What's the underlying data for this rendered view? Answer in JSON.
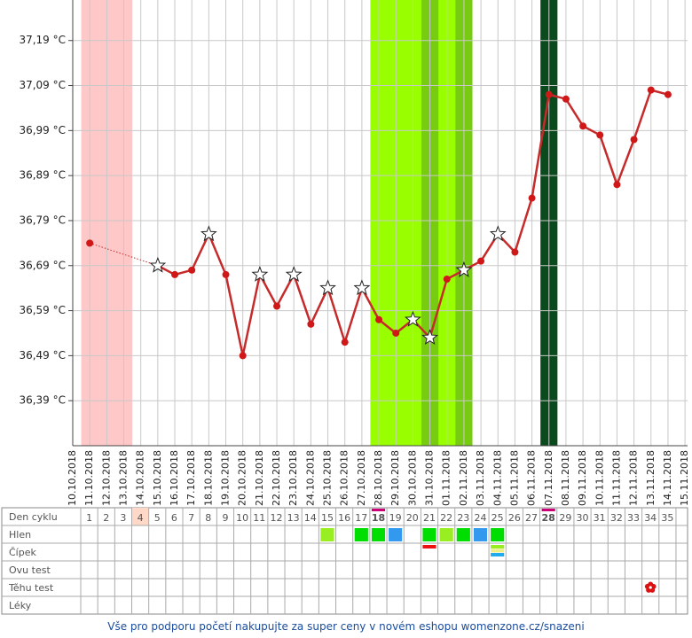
{
  "chart_data": {
    "type": "line",
    "categories": [
      "10.10.2018",
      "11.10.2018",
      "12.10.2018",
      "13.10.2018",
      "14.10.2018",
      "15.10.2018",
      "16.10.2018",
      "17.10.2018",
      "18.10.2018",
      "19.10.2018",
      "20.10.2018",
      "21.10.2018",
      "22.10.2018",
      "23.10.2018",
      "24.10.2018",
      "25.10.2018",
      "26.10.2018",
      "27.10.2018",
      "28.10.2018",
      "29.10.2018",
      "30.10.2018",
      "31.10.2018",
      "01.11.2018",
      "02.11.2018",
      "03.11.2018",
      "04.11.2018",
      "05.11.2018",
      "06.11.2018",
      "07.11.2018",
      "08.11.2018",
      "09.11.2018",
      "10.11.2018",
      "11.11.2018",
      "12.11.2018",
      "13.11.2018",
      "14.11.2018",
      "15.11.2018"
    ],
    "series": [
      {
        "color": "#c62a2a",
        "values": [
          null,
          36.74,
          null,
          null,
          null,
          36.69,
          36.67,
          36.68,
          36.76,
          36.67,
          36.49,
          36.67,
          36.6,
          36.67,
          36.56,
          36.64,
          36.52,
          36.64,
          36.57,
          36.54,
          36.57,
          36.53,
          36.66,
          36.68,
          36.7,
          36.76,
          36.72,
          36.84,
          37.07,
          37.06,
          37.0,
          36.98,
          36.87,
          36.97,
          37.08,
          37.07,
          null
        ],
        "markers": [
          null,
          "circle",
          null,
          null,
          null,
          "star",
          "circle",
          "circle",
          "star",
          "circle",
          "circle",
          "star",
          "circle",
          "star",
          "circle",
          "star",
          "circle",
          "star",
          "circle",
          "circle",
          "star",
          "star",
          "circle",
          "star",
          "circle",
          "star",
          "circle",
          "circle",
          "circle",
          "circle",
          "circle",
          "circle",
          "circle",
          "circle",
          "circle",
          "circle",
          null
        ]
      }
    ],
    "ylim": [
      36.29,
      37.28
    ],
    "yticks": [
      {
        "value": 36.39,
        "label": "36,39 °C"
      },
      {
        "value": 36.49,
        "label": "36,49 °C"
      },
      {
        "value": 36.59,
        "label": "36,59 °C"
      },
      {
        "value": 36.69,
        "label": "36,69 °C"
      },
      {
        "value": 36.79,
        "label": "36,79 °C"
      },
      {
        "value": 36.89,
        "label": "36,89 °C"
      },
      {
        "value": 36.99,
        "label": "36,99 °C"
      },
      {
        "value": 37.09,
        "label": "37,09 °C"
      },
      {
        "value": 37.19,
        "label": "37,19 °C"
      }
    ],
    "grid": true,
    "bands": [
      {
        "from": "11.10.2018",
        "to": "13.10.2018",
        "color": "#ffc8c8"
      },
      {
        "from": "28.10.2018",
        "to": "02.11.2018",
        "color": "#99ff00"
      },
      {
        "from": "31.10.2018",
        "to": "31.10.2018",
        "color": "#77cc11"
      },
      {
        "from": "02.11.2018",
        "to": "02.11.2018",
        "color": "#77cc11"
      },
      {
        "from": "07.11.2018",
        "to": "07.11.2018",
        "color": "#0b4a1c"
      }
    ]
  },
  "cycle_table": {
    "row_labels": [
      "Den cyklu",
      "Hlen",
      "Čípek",
      "Ovu test",
      "Těhu test",
      "Léky"
    ],
    "days": [
      1,
      2,
      3,
      4,
      5,
      6,
      7,
      8,
      9,
      10,
      11,
      12,
      13,
      14,
      15,
      16,
      17,
      18,
      19,
      20,
      21,
      22,
      23,
      24,
      25,
      26,
      27,
      28,
      29,
      30,
      31,
      32,
      33,
      34,
      35
    ],
    "day_styles": [
      null,
      null,
      null,
      "pink",
      null,
      null,
      null,
      null,
      null,
      null,
      null,
      null,
      null,
      null,
      null,
      null,
      null,
      "bold",
      null,
      null,
      null,
      null,
      null,
      null,
      null,
      null,
      null,
      "bold",
      null,
      null,
      null,
      null,
      null,
      null,
      null
    ],
    "hlen": [
      null,
      null,
      null,
      null,
      null,
      null,
      null,
      null,
      null,
      null,
      null,
      null,
      null,
      null,
      "#99ee22",
      null,
      "#00dd00",
      "#00dd00",
      "#3399ee",
      null,
      "#00dd00",
      "#99ee22",
      "#00dd00",
      "#3399ee",
      "#00dd00",
      null,
      null,
      null,
      null,
      null,
      null,
      null,
      null,
      null,
      null
    ],
    "cipek": [
      null,
      null,
      null,
      null,
      null,
      null,
      null,
      null,
      null,
      null,
      null,
      null,
      null,
      null,
      null,
      null,
      null,
      null,
      null,
      null,
      [
        "#ee1111"
      ],
      null,
      null,
      null,
      [
        "#99ee22",
        "#eeee88",
        "#22aaee"
      ],
      null,
      null,
      null,
      null,
      null,
      null,
      null,
      null,
      null,
      null
    ],
    "tehu_test": [
      null,
      null,
      null,
      null,
      null,
      null,
      null,
      null,
      null,
      null,
      null,
      null,
      null,
      null,
      null,
      null,
      null,
      null,
      null,
      null,
      null,
      null,
      null,
      null,
      null,
      null,
      null,
      null,
      null,
      null,
      null,
      null,
      null,
      "#dd1111",
      null
    ]
  },
  "footer": "Vše pro podporu početí nakupujte za super ceny v novém eshopu womenzone.cz/snazeni"
}
